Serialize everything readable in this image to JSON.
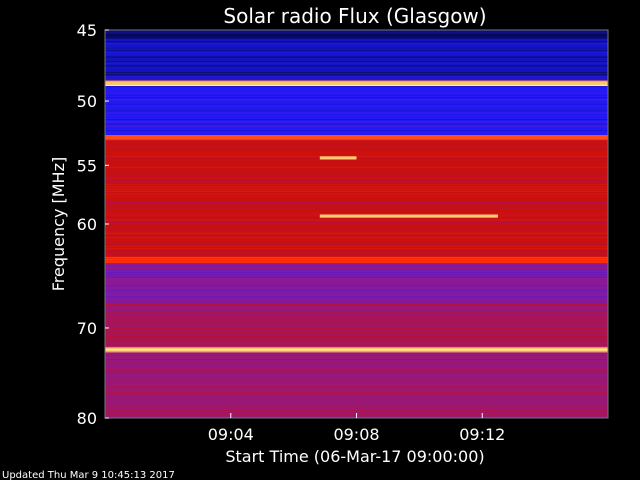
{
  "chart_data": {
    "type": "heatmap",
    "title": "Solar radio Flux (Glasgow)",
    "xlabel": "Start Time (06-Mar-17 09:00:00)",
    "ylabel": "Frequency [MHz]",
    "y_scale": "log",
    "y_ticks": [
      45,
      50,
      55,
      60,
      70,
      80
    ],
    "ylim": [
      45,
      80
    ],
    "x_ticks": [
      "09:04",
      "09:08",
      "09:12"
    ],
    "xlim": [
      "09:00",
      "09:16"
    ],
    "colormap": [
      "#000000",
      "#1a1aff",
      "#8a1a99",
      "#c81010",
      "#ff2a00",
      "#ffff99"
    ],
    "bands": [
      {
        "f0": 45.0,
        "f1": 45.6,
        "level": 0.1
      },
      {
        "f0": 45.6,
        "f1": 48.5,
        "level": 0.15
      },
      {
        "f0": 48.5,
        "f1": 48.9,
        "level": 0.95
      },
      {
        "f0": 48.9,
        "f1": 52.6,
        "level": 0.22
      },
      {
        "f0": 52.6,
        "f1": 53.0,
        "level": 0.82
      },
      {
        "f0": 53.0,
        "f1": 63.0,
        "level": 0.6
      },
      {
        "f0": 63.0,
        "f1": 63.6,
        "level": 0.78
      },
      {
        "f0": 63.6,
        "f1": 67.5,
        "level": 0.4
      },
      {
        "f0": 67.5,
        "f1": 72.0,
        "level": 0.5
      },
      {
        "f0": 72.0,
        "f1": 72.6,
        "level": 0.95
      },
      {
        "f0": 72.6,
        "f1": 80.0,
        "level": 0.45
      }
    ],
    "features": [
      {
        "kind": "burst-line",
        "freq": 59.3,
        "t_start": "09:06:50",
        "t_end": "09:12:30"
      },
      {
        "kind": "burst-line",
        "freq": 54.4,
        "t_start": "09:06:50",
        "t_end": "09:08:00"
      }
    ]
  },
  "footer": "Updated Thu Mar  9 10:45:13 2017"
}
